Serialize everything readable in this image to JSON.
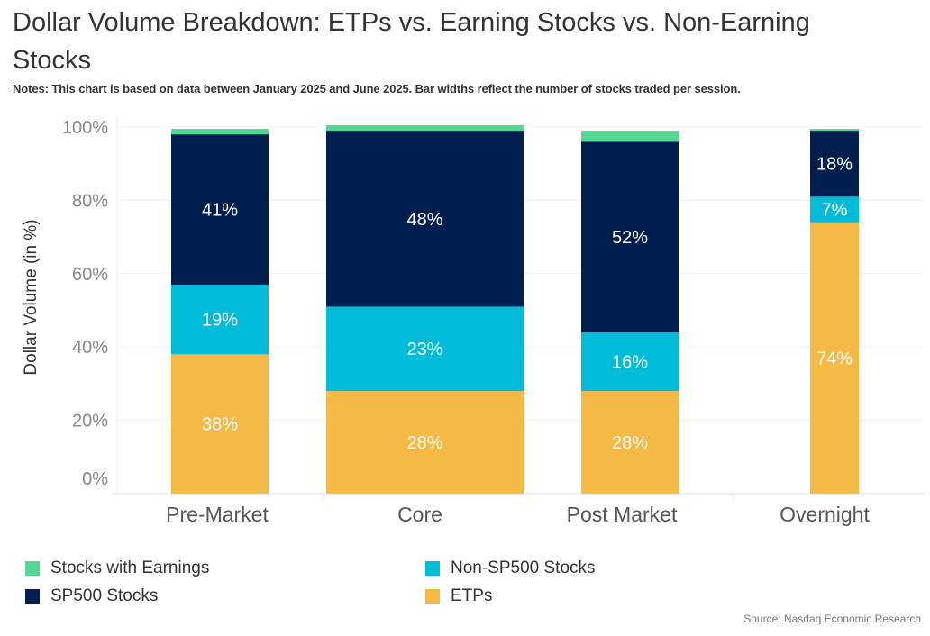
{
  "chart_data": {
    "type": "bar",
    "stacked": true,
    "title": "Dollar Volume Breakdown: ETPs vs. Earning Stocks vs. Non-Earning Stocks",
    "subtitle": "Notes: This chart is based on data between January 2025 and June 2025. Bar widths reflect the number of stocks traded per session.",
    "ylabel": "Dollar Volume (in %)",
    "xlabel": "",
    "ylim": [
      0,
      100
    ],
    "yticks": [
      "0%",
      "20%",
      "40%",
      "60%",
      "80%",
      "100%"
    ],
    "categories": [
      "Pre-Market",
      "Core",
      "Post Market",
      "Overnight"
    ],
    "series": [
      {
        "name": "ETPs",
        "color": "#F4BA45",
        "values": [
          38,
          28,
          28,
          74
        ],
        "labels": [
          "38%",
          "28%",
          "28%",
          "74%"
        ]
      },
      {
        "name": "Non-SP500 Stocks",
        "color": "#00BCD8",
        "values": [
          19,
          23,
          16,
          7
        ],
        "labels": [
          "19%",
          "23%",
          "16%",
          "7%"
        ]
      },
      {
        "name": "SP500 Stocks",
        "color": "#001F4F",
        "values": [
          41,
          48,
          52,
          18
        ],
        "labels": [
          "41%",
          "48%",
          "52%",
          "18%"
        ]
      },
      {
        "name": "Stocks with Earnings",
        "color": "#52D890",
        "values": [
          1.5,
          1.5,
          3,
          0.5
        ],
        "labels": [
          "",
          "",
          "",
          ""
        ]
      }
    ],
    "grid": true,
    "legend_position": "bottom"
  },
  "legend": [
    {
      "name": "Stocks with Earnings",
      "color": "#52D890"
    },
    {
      "name": "Non-SP500 Stocks",
      "color": "#00BCD8"
    },
    {
      "name": "SP500 Stocks",
      "color": "#001F4F"
    },
    {
      "name": "ETPs",
      "color": "#F4BA45"
    }
  ],
  "source": "Source: Nasdaq Economic Research"
}
